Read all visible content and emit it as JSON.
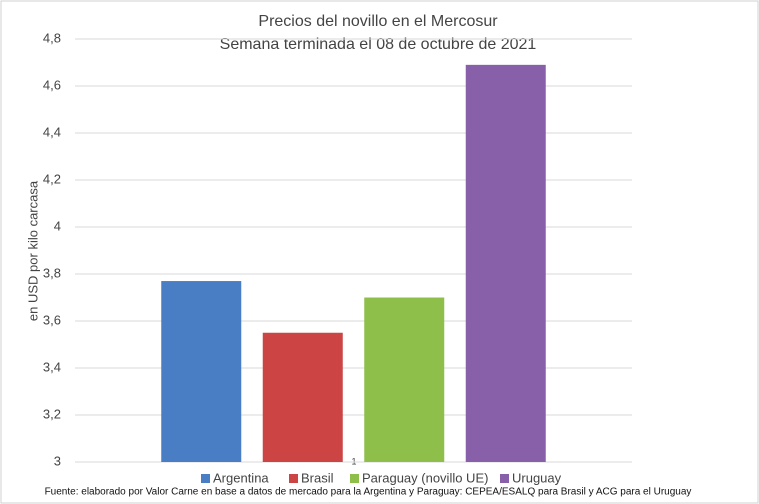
{
  "chart_data": {
    "type": "bar",
    "title": "Precios del novillo en el Mercosur",
    "subtitle": "Semana terminada el 08 de octubre de 2021",
    "y_label": "en USD por kilo carcasa",
    "categories": [
      null
    ],
    "series": [
      {
        "name": "Argentina",
        "color": "#4a7ec4",
        "values": [
          3.77
        ]
      },
      {
        "name": "Brasil",
        "color": "#cc4444",
        "values": [
          3.55
        ]
      },
      {
        "name": "Paraguay (novillo UE)",
        "color": "#8fbf4b",
        "values": [
          3.7
        ]
      },
      {
        "name": "Uruguay",
        "color": "#8860aa",
        "values": [
          4.69
        ]
      }
    ],
    "ylim": [
      3,
      4.8
    ],
    "yticks": [
      3,
      {
        "value": 3.2,
        "label": "3,2"
      },
      {
        "value": 3.4,
        "label": "3,4"
      },
      {
        "value": 3.6,
        "label": "3,6"
      },
      {
        "value": 3.8,
        "label": "3,8"
      },
      4,
      {
        "value": 4.2,
        "label": "4,2"
      },
      {
        "value": 4.4,
        "label": "4,4"
      },
      {
        "value": 4.6,
        "label": "4,6"
      },
      {
        "value": 4.8,
        "label": "4,8"
      }
    ],
    "grid": true,
    "legend": "bottom",
    "page_marker": "1",
    "source": "Fuente: elaborado por Valor Carne en base a datos de mercado para la Argentina y Paraguay: CEPEA/ESALQ para Brasil y ACG para el Uruguay"
  }
}
